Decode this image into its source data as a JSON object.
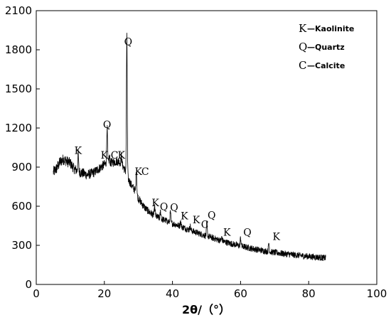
{
  "chart_data": {
    "type": "line",
    "title": "",
    "xlabel": "2θ/（°）",
    "ylabel": "",
    "xlim": [
      0,
      100
    ],
    "ylim": [
      0,
      2100
    ],
    "xticks": [
      0,
      20,
      40,
      60,
      80,
      100
    ],
    "yticks": [
      0,
      300,
      600,
      900,
      1200,
      1500,
      1800,
      2100
    ],
    "grid": false,
    "legend_position": "top-right",
    "line_color": "#000000",
    "profile": [
      [
        5,
        860
      ],
      [
        6,
        890
      ],
      [
        7,
        940
      ],
      [
        8,
        960
      ],
      [
        9,
        945
      ],
      [
        10,
        930
      ],
      [
        11,
        890
      ],
      [
        12,
        870
      ],
      [
        13,
        860
      ],
      [
        14,
        850
      ],
      [
        15,
        840
      ],
      [
        16,
        850
      ],
      [
        17,
        860
      ],
      [
        18,
        880
      ],
      [
        19,
        900
      ],
      [
        20,
        920
      ],
      [
        21,
        930
      ],
      [
        22,
        935
      ],
      [
        23,
        940
      ],
      [
        24,
        945
      ],
      [
        25,
        930
      ],
      [
        26,
        880
      ],
      [
        27,
        810
      ],
      [
        28,
        760
      ],
      [
        29,
        720
      ],
      [
        30,
        660
      ],
      [
        31,
        620
      ],
      [
        32,
        585
      ],
      [
        33,
        560
      ],
      [
        34,
        540
      ],
      [
        35,
        525
      ],
      [
        36,
        510
      ],
      [
        37,
        500
      ],
      [
        38,
        490
      ],
      [
        39,
        478
      ],
      [
        40,
        468
      ],
      [
        42,
        450
      ],
      [
        44,
        428
      ],
      [
        46,
        408
      ],
      [
        48,
        390
      ],
      [
        50,
        372
      ],
      [
        52,
        355
      ],
      [
        54,
        338
      ],
      [
        56,
        322
      ],
      [
        58,
        308
      ],
      [
        60,
        295
      ],
      [
        62,
        283
      ],
      [
        64,
        272
      ],
      [
        66,
        262
      ],
      [
        68,
        253
      ],
      [
        70,
        245
      ],
      [
        72,
        238
      ],
      [
        74,
        232
      ],
      [
        76,
        226
      ],
      [
        78,
        220
      ],
      [
        80,
        215
      ],
      [
        82,
        210
      ],
      [
        84,
        205
      ],
      [
        85,
        203
      ]
    ],
    "peaks": [
      {
        "x": 12.3,
        "y": 1000,
        "label": "K"
      },
      {
        "x": 20.8,
        "y": 1210,
        "label": "Q"
      },
      {
        "x": 26.6,
        "y": 1900,
        "label": "Q"
      },
      {
        "x": 21.5,
        "y": 980,
        "label": ""
      },
      {
        "x": 25.0,
        "y": 990,
        "label": ""
      },
      {
        "x": 29.4,
        "y": 880,
        "label": ""
      },
      {
        "x": 34.8,
        "y": 590,
        "label": ""
      },
      {
        "x": 36.5,
        "y": 560,
        "label": ""
      },
      {
        "x": 39.4,
        "y": 555,
        "label": ""
      },
      {
        "x": 42.4,
        "y": 485,
        "label": ""
      },
      {
        "x": 45.2,
        "y": 450,
        "label": ""
      },
      {
        "x": 50.1,
        "y": 470,
        "label": ""
      },
      {
        "x": 54.5,
        "y": 360,
        "label": ""
      },
      {
        "x": 60.0,
        "y": 355,
        "label": ""
      },
      {
        "x": 68.3,
        "y": 320,
        "label": ""
      }
    ],
    "peak_labels": [
      {
        "text": "K",
        "x": 12.3,
        "y": 1000
      },
      {
        "text": "Q",
        "x": 20.8,
        "y": 1200
      },
      {
        "text": "K",
        "x": 20.0,
        "y": 965
      },
      {
        "text": "C",
        "x": 23.0,
        "y": 965
      },
      {
        "text": "K",
        "x": 25.0,
        "y": 965
      },
      {
        "text": "Q",
        "x": 27.0,
        "y": 1835
      },
      {
        "text": "K",
        "x": 30.0,
        "y": 840
      },
      {
        "text": "C",
        "x": 32.0,
        "y": 840
      },
      {
        "text": "K",
        "x": 35.0,
        "y": 600
      },
      {
        "text": "Q",
        "x": 37.5,
        "y": 570
      },
      {
        "text": "Q",
        "x": 40.5,
        "y": 565
      },
      {
        "text": "K",
        "x": 43.5,
        "y": 500
      },
      {
        "text": "K",
        "x": 47.0,
        "y": 470
      },
      {
        "text": "C",
        "x": 49.5,
        "y": 435
      },
      {
        "text": "Q",
        "x": 51.5,
        "y": 505
      },
      {
        "text": "K",
        "x": 56.0,
        "y": 375
      },
      {
        "text": "Q",
        "x": 62.0,
        "y": 375
      },
      {
        "text": "K",
        "x": 70.5,
        "y": 340
      }
    ]
  },
  "legend": [
    {
      "symbol": "K",
      "text": "—Kaolinite"
    },
    {
      "symbol": "Q",
      "text": "—Quartz"
    },
    {
      "symbol": "C",
      "text": "—Calcite"
    }
  ]
}
